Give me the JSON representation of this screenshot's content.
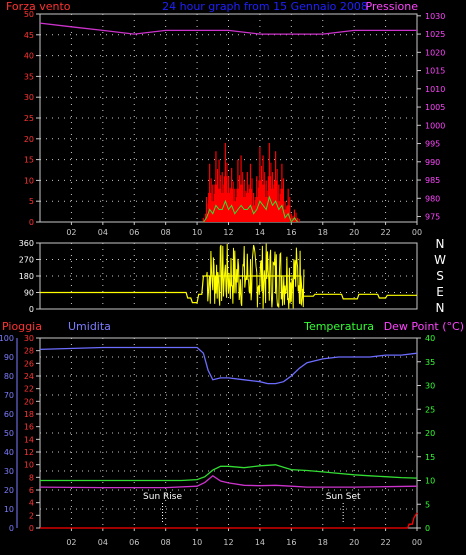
{
  "colors": {
    "wind": "#ff0000",
    "gust_center": "#33dd33",
    "pressure": "#cc33cc",
    "direction": "#ffff00",
    "humidity": "#6c6cff",
    "temperature": "#33dd33",
    "dewpoint": "#cc33cc",
    "rain": "#ff0000",
    "title": "#2020ff",
    "axis": "#c8c8c8",
    "grid": "#c8c8c8",
    "tick_left_wind": "#ff3333",
    "tick_right_pressure": "#ff44ff",
    "tick_left_rain": "#ff3333",
    "tick_left_hum": "#7c7cff",
    "tick_right_temp": "#33ff33",
    "text_white": "#ffffff"
  },
  "chart_data": [
    {
      "type": "line",
      "title": "24 hour graph from 15 Gennaio 2008",
      "left_label": "Forza vento",
      "right_label": "Pressione",
      "x_ticks": [
        "02",
        "04",
        "06",
        "08",
        "10",
        "12",
        "14",
        "16",
        "18",
        "20",
        "22",
        "00"
      ],
      "x_range": [
        0,
        24
      ],
      "y_left_ticks": [
        0,
        5,
        10,
        15,
        20,
        25,
        30,
        35,
        40,
        45,
        50
      ],
      "y_left_range": [
        0,
        50
      ],
      "y_right_ticks": [
        975,
        980,
        985,
        990,
        995,
        1000,
        1005,
        1010,
        1015,
        1020,
        1025,
        1030
      ],
      "y_right_range": [
        973.5,
        1030.5
      ],
      "series": [
        {
          "key": "pressure",
          "hours": [
            0,
            2,
            4,
            6,
            8,
            10,
            12,
            14,
            16,
            18,
            20,
            22,
            24
          ],
          "values": [
            1028,
            1027,
            1026,
            1025,
            1026,
            1026,
            1026,
            1025,
            1025,
            1025,
            1026,
            1026,
            1026
          ]
        }
      ],
      "wind": {
        "gust_hours": [
          10.4,
          10.6,
          10.8,
          11.0,
          11.2,
          11.4,
          11.6,
          11.8,
          12.0,
          12.2,
          12.4,
          12.6,
          12.8,
          13.0,
          13.2,
          13.4,
          13.6,
          13.8,
          14.0,
          14.2,
          14.4,
          14.6,
          14.8,
          15.0,
          15.2,
          15.4,
          15.6,
          15.8,
          16.0,
          16.2,
          16.4
        ],
        "gust_values": [
          1,
          6,
          14,
          9,
          17,
          15,
          12,
          19,
          11,
          13,
          8,
          15,
          16,
          10,
          12,
          14,
          7,
          11,
          18,
          16,
          10,
          19,
          12,
          17,
          9,
          14,
          5,
          8,
          2,
          3,
          1
        ],
        "avg_values": [
          0,
          2,
          7,
          5,
          9,
          8,
          7,
          11,
          7,
          8,
          5,
          8,
          9,
          6,
          7,
          8,
          4,
          6,
          10,
          9,
          6,
          11,
          8,
          10,
          5,
          8,
          3,
          4,
          1,
          1,
          0
        ],
        "center_values": [
          0,
          1,
          3,
          2,
          4,
          3,
          3,
          5,
          3,
          4,
          2,
          3,
          4,
          3,
          3,
          4,
          2,
          3,
          5,
          4,
          3,
          6,
          4,
          5,
          3,
          4,
          1,
          2,
          0,
          1,
          0
        ]
      }
    },
    {
      "type": "line",
      "y_ticks": [
        0,
        90,
        180,
        270,
        360
      ],
      "y_range": [
        0,
        360
      ],
      "compass": [
        "N",
        "W",
        "S",
        "E",
        "N"
      ],
      "series": [
        {
          "key": "direction",
          "hours": [
            0,
            9.3,
            9.4,
            9.6,
            9.7,
            10.0,
            10.1,
            10.3,
            10.4,
            16.6,
            16.7,
            17.4,
            17.5,
            19.2,
            19.3,
            20.2,
            20.3,
            21.5,
            21.6,
            22.0,
            22.1,
            24
          ],
          "values": [
            90,
            90,
            60,
            60,
            35,
            35,
            80,
            80,
            180,
            180,
            70,
            70,
            80,
            80,
            55,
            55,
            80,
            80,
            60,
            60,
            75,
            75
          ]
        }
      ],
      "direction_burst": {
        "start": 10.6,
        "end": 16.8,
        "min": 0,
        "max": 360
      }
    },
    {
      "type": "line",
      "left_label_rain": "Pioggia",
      "left_label_hum": "Umidita",
      "right_label_temp": "Temperatura",
      "right_label_dew": "Dew Point (°C)",
      "x_ticks": [
        "02",
        "04",
        "06",
        "08",
        "10",
        "12",
        "14",
        "16",
        "18",
        "20",
        "22",
        "00"
      ],
      "y_left_rain_ticks": [
        0,
        2,
        4,
        6,
        8,
        10,
        12,
        14,
        16,
        18,
        20,
        22,
        24,
        26,
        28,
        30
      ],
      "y_left_hum_ticks": [
        0,
        10,
        20,
        30,
        40,
        50,
        60,
        70,
        80,
        90,
        100
      ],
      "y_right_temp_ticks": [
        0,
        5,
        10,
        15,
        20,
        25,
        30,
        35,
        40
      ],
      "y_hum_range": [
        0,
        100
      ],
      "y_temp_range": [
        0,
        40
      ],
      "annotations": [
        {
          "label": "Sun Rise",
          "hour": 7.8
        },
        {
          "label": "Sun Set",
          "hour": 19.3
        }
      ],
      "series": [
        {
          "key": "humidity",
          "hours": [
            0,
            4,
            8,
            10,
            10.4,
            10.7,
            11.0,
            11.5,
            12,
            13,
            14,
            14.5,
            15,
            15.5,
            16,
            16.5,
            17,
            18,
            19,
            20,
            21,
            22,
            23,
            24
          ],
          "values": [
            94,
            95,
            95,
            95,
            92,
            83,
            78,
            79,
            79,
            78,
            77,
            76,
            76,
            77,
            80,
            84,
            87,
            89,
            90,
            90,
            90,
            91,
            91,
            92
          ]
        },
        {
          "key": "temperature",
          "hours": [
            0,
            3,
            6,
            9,
            10,
            10.5,
            11,
            11.5,
            12,
            13,
            14,
            15,
            15.5,
            16,
            17,
            18,
            19,
            20,
            21,
            22,
            23,
            24
          ],
          "values": [
            10,
            10,
            10,
            10,
            10.2,
            10.8,
            12.2,
            13.0,
            13.0,
            12.7,
            13.1,
            13.3,
            12.8,
            12.3,
            12.1,
            11.8,
            11.5,
            11.2,
            11.0,
            10.8,
            10.6,
            10.5
          ]
        },
        {
          "key": "dewpoint",
          "hours": [
            0,
            4,
            8,
            10,
            10.5,
            11,
            11.5,
            12,
            13,
            14,
            15,
            16,
            17,
            18,
            20,
            22,
            24
          ],
          "values": [
            8.6,
            8.5,
            8.5,
            8.8,
            9.6,
            11.0,
            9.9,
            9.5,
            9.0,
            8.9,
            9.0,
            8.8,
            8.6,
            8.6,
            8.6,
            8.7,
            8.8
          ]
        },
        {
          "key": "rain",
          "hours": [
            0,
            23.4,
            23.5,
            23.7,
            23.8,
            24
          ],
          "values": [
            0,
            0,
            0.6,
            0.6,
            1.6,
            2.4
          ]
        }
      ]
    }
  ]
}
